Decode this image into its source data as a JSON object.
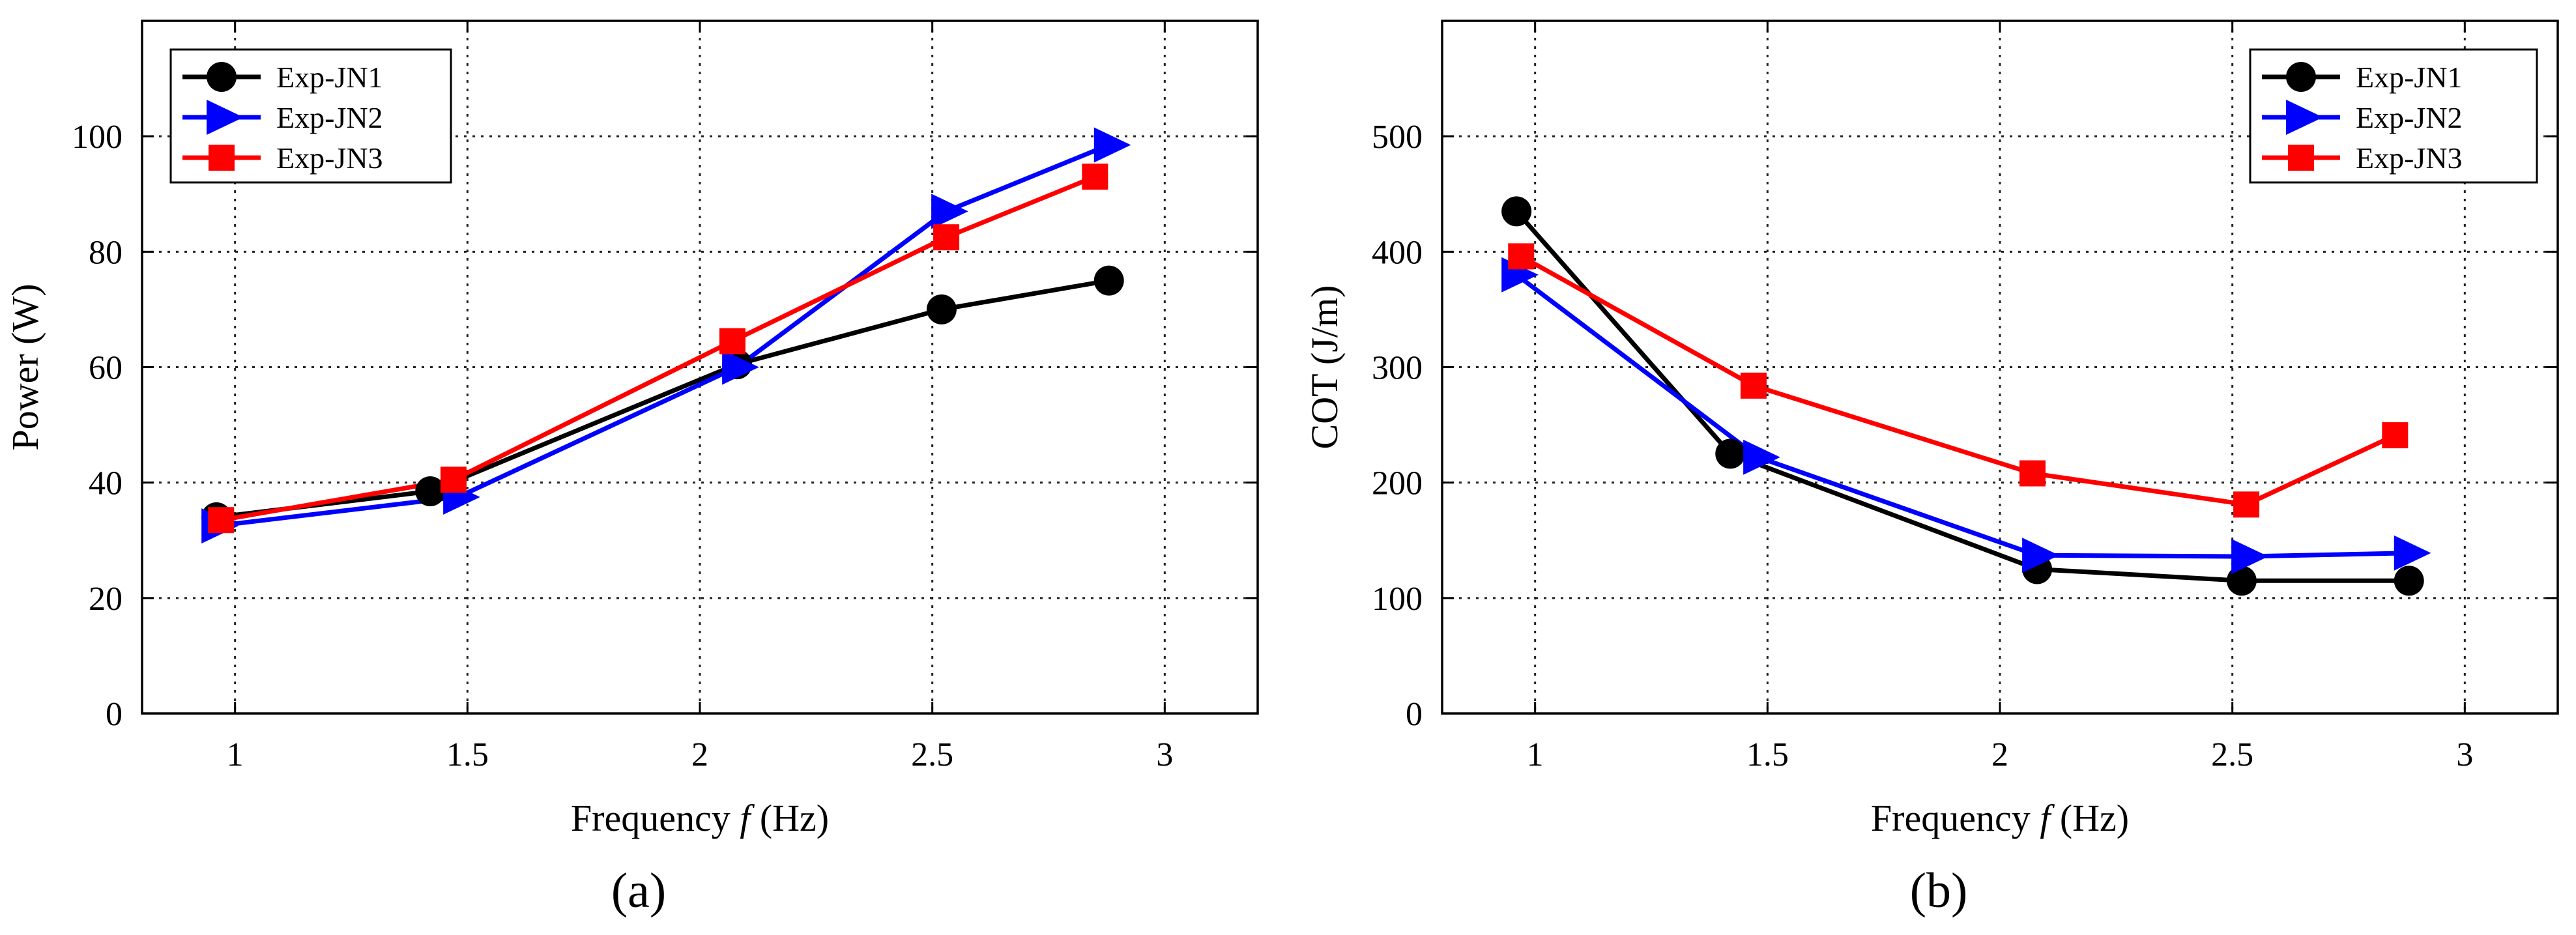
{
  "chart_data": [
    {
      "type": "line",
      "panel_label": "(a)",
      "xlabel_pre": "Frequency ",
      "xlabel_var": "f",
      "xlabel_post": " (Hz)",
      "ylabel": "Power (W)",
      "xlim": [
        0.8,
        3.2
      ],
      "ylim": [
        0,
        120
      ],
      "xticks": [
        1,
        1.5,
        2,
        2.5,
        3
      ],
      "xtick_labels": [
        "1",
        "1.5",
        "2",
        "2.5",
        "3"
      ],
      "yticks": [
        0,
        20,
        40,
        60,
        80,
        100
      ],
      "ytick_labels": [
        "0",
        "20",
        "40",
        "60",
        "80",
        "100"
      ],
      "grid": true,
      "legend_position": "top-left",
      "series": [
        {
          "name": "Exp-JN1",
          "marker": "circle",
          "color": "#000000",
          "x": [
            0.96,
            1.42,
            2.08,
            2.52,
            2.88
          ],
          "y": [
            34,
            38.5,
            60.5,
            70,
            75
          ]
        },
        {
          "name": "Exp-JN2",
          "marker": "triangle-right",
          "color": "#0000ff",
          "x": [
            0.96,
            1.48,
            2.08,
            2.53,
            2.88
          ],
          "y": [
            32.5,
            37.5,
            60,
            87,
            98.5
          ]
        },
        {
          "name": "Exp-JN3",
          "marker": "square",
          "color": "#ff0000",
          "x": [
            0.97,
            1.47,
            2.07,
            2.53,
            2.85
          ],
          "y": [
            33.5,
            40.5,
            64.5,
            82.5,
            93
          ]
        }
      ]
    },
    {
      "type": "line",
      "panel_label": "(b)",
      "xlabel_pre": "Frequency ",
      "xlabel_var": "f",
      "xlabel_post": " (Hz)",
      "ylabel": "COT (J/m)",
      "xlim": [
        0.8,
        3.2
      ],
      "ylim": [
        0,
        600
      ],
      "xticks": [
        1,
        1.5,
        2,
        2.5,
        3
      ],
      "xtick_labels": [
        "1",
        "1.5",
        "2",
        "2.5",
        "3"
      ],
      "yticks": [
        0,
        100,
        200,
        300,
        400,
        500
      ],
      "ytick_labels": [
        "0",
        "100",
        "200",
        "300",
        "400",
        "500"
      ],
      "grid": true,
      "legend_position": "top-right",
      "series": [
        {
          "name": "Exp-JN1",
          "marker": "circle",
          "color": "#000000",
          "x": [
            0.96,
            1.42,
            2.08,
            2.52,
            2.88
          ],
          "y": [
            435,
            225,
            125,
            115,
            115
          ]
        },
        {
          "name": "Exp-JN2",
          "marker": "triangle-right",
          "color": "#0000ff",
          "x": [
            0.96,
            1.48,
            2.08,
            2.53,
            2.88
          ],
          "y": [
            380,
            222,
            137,
            136,
            139
          ]
        },
        {
          "name": "Exp-JN3",
          "marker": "square",
          "color": "#ff0000",
          "x": [
            0.97,
            1.47,
            2.07,
            2.53,
            2.85
          ],
          "y": [
            396,
            284,
            208,
            181,
            241
          ]
        }
      ]
    }
  ]
}
